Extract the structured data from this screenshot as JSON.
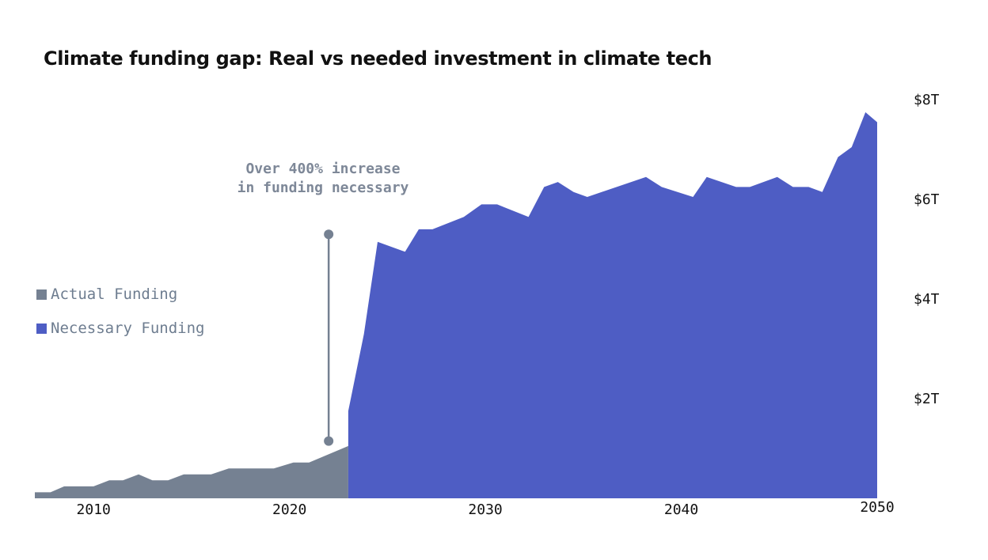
{
  "title": "Climate funding gap: Real vs needed investment in climate tech",
  "legend": [
    {
      "label": "Actual Funding",
      "color": "#758192"
    },
    {
      "label": "Necessary Funding",
      "color": "#4e5dc4"
    }
  ],
  "annotation": {
    "lines": [
      "Over 400% increase",
      "in funding necessary"
    ],
    "color": "#758192"
  },
  "chart_data": {
    "type": "area",
    "title": "Climate funding gap: Real vs needed investment in climate tech",
    "xlabel": "",
    "ylabel": "",
    "xlim": [
      2007,
      2050
    ],
    "ylim": [
      0,
      8.4
    ],
    "x_ticks": [
      2010,
      2020,
      2030,
      2040,
      2050
    ],
    "x_tick_labels": [
      "2010",
      "2020",
      "2030",
      "2040",
      "2050"
    ],
    "y_ticks": [
      2,
      4,
      6,
      8
    ],
    "y_tick_labels": [
      "$2T",
      "$4T",
      "$6T",
      "$8T"
    ],
    "y_axis_side": "right",
    "grid": false,
    "legend_position": "left",
    "series": [
      {
        "name": "Actual Funding",
        "color": "#758192",
        "points": [
          [
            2007.0,
            0.12
          ],
          [
            2007.8,
            0.12
          ],
          [
            2008.5,
            0.24
          ],
          [
            2010.0,
            0.24
          ],
          [
            2010.8,
            0.36
          ],
          [
            2011.5,
            0.36
          ],
          [
            2012.3,
            0.48
          ],
          [
            2013.0,
            0.36
          ],
          [
            2013.8,
            0.36
          ],
          [
            2014.6,
            0.48
          ],
          [
            2016.0,
            0.48
          ],
          [
            2016.9,
            0.6
          ],
          [
            2019.2,
            0.6
          ],
          [
            2020.2,
            0.72
          ],
          [
            2021.0,
            0.72
          ],
          [
            2023.0,
            1.05
          ]
        ]
      },
      {
        "name": "Necessary Funding",
        "color": "#4e5dc4",
        "points": [
          [
            2023.0,
            1.75
          ],
          [
            2023.8,
            3.3
          ],
          [
            2024.5,
            5.15
          ],
          [
            2025.9,
            4.95
          ],
          [
            2026.6,
            5.4
          ],
          [
            2027.3,
            5.4
          ],
          [
            2028.9,
            5.65
          ],
          [
            2029.8,
            5.9
          ],
          [
            2030.6,
            5.9
          ],
          [
            2032.2,
            5.65
          ],
          [
            2033.0,
            6.25
          ],
          [
            2033.7,
            6.35
          ],
          [
            2034.5,
            6.15
          ],
          [
            2035.2,
            6.05
          ],
          [
            2036.7,
            6.25
          ],
          [
            2038.2,
            6.45
          ],
          [
            2039.0,
            6.25
          ],
          [
            2040.6,
            6.05
          ],
          [
            2041.3,
            6.45
          ],
          [
            2042.8,
            6.25
          ],
          [
            2043.5,
            6.25
          ],
          [
            2044.9,
            6.45
          ],
          [
            2045.7,
            6.25
          ],
          [
            2046.5,
            6.25
          ],
          [
            2047.2,
            6.15
          ],
          [
            2048.0,
            6.85
          ],
          [
            2048.7,
            7.05
          ],
          [
            2049.4,
            7.75
          ],
          [
            2050.0,
            7.55
          ]
        ]
      }
    ],
    "annotations": [
      {
        "text": "Over 400% increase in funding necessary",
        "x": 2022.0,
        "y_from": 1.15,
        "y_to": 5.3
      }
    ]
  }
}
